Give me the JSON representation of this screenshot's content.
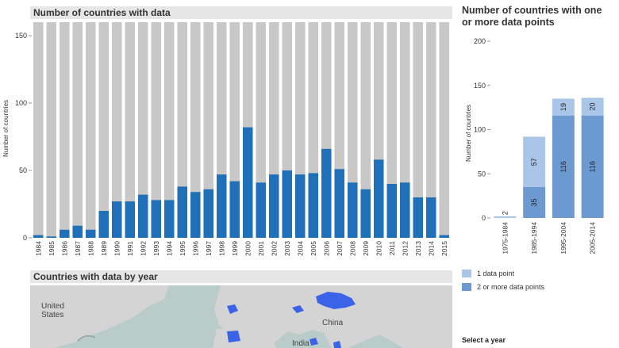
{
  "main_chart": {
    "title": "Number of countries with data",
    "ylabel": "Number of countries"
  },
  "side_chart": {
    "title": "Number of countries with one or more data points",
    "ylabel": "Number of countries"
  },
  "map_panel": {
    "title": "Countries with data by year",
    "labels": [
      "United\nStates",
      "China",
      "India"
    ]
  },
  "legend": {
    "one": "1 data point",
    "two": "2 or more data points"
  },
  "select_year_label": "Select a year",
  "colors": {
    "bar": "#1f70b8",
    "background_bar": "#c8c8c8",
    "one_point": "#a9c5e8",
    "two_points": "#6b99d0",
    "map_water": "#b9ccca",
    "map_land": "#d4d4d4",
    "map_highlight": "#3b63e8"
  },
  "chart_data": [
    {
      "type": "bar",
      "title": "Number of countries with data",
      "ylabel": "Number of countries",
      "ylim": [
        0,
        160
      ],
      "yticks": [
        0,
        50,
        100,
        150
      ],
      "background_total": 160,
      "categories": [
        "1984",
        "1985",
        "1986",
        "1987",
        "1988",
        "1989",
        "1990",
        "1991",
        "1992",
        "1993",
        "1994",
        "1995",
        "1996",
        "1997",
        "1998",
        "1999",
        "2000",
        "2001",
        "2002",
        "2003",
        "2004",
        "2005",
        "2006",
        "2007",
        "2008",
        "2009",
        "2010",
        "2011",
        "2012",
        "2013",
        "2014",
        "2015"
      ],
      "values": [
        2,
        1,
        6,
        9,
        6,
        20,
        27,
        27,
        32,
        28,
        28,
        38,
        34,
        36,
        47,
        42,
        82,
        41,
        47,
        50,
        47,
        48,
        66,
        51,
        41,
        36,
        58,
        40,
        41,
        30,
        30,
        2
      ]
    },
    {
      "type": "bar",
      "stacked": true,
      "title": "Number of countries with one or more data points",
      "ylabel": "Number of countries",
      "ylim": [
        0,
        200
      ],
      "yticks": [
        0,
        50,
        100,
        150,
        200
      ],
      "categories": [
        "1975-1984",
        "1985-1994",
        "1995-2004",
        "2005-2014"
      ],
      "series": [
        {
          "name": "2 or more data points",
          "values": [
            0,
            35,
            116,
            116
          ]
        },
        {
          "name": "1 data point",
          "values": [
            2,
            57,
            19,
            20
          ]
        }
      ]
    }
  ]
}
